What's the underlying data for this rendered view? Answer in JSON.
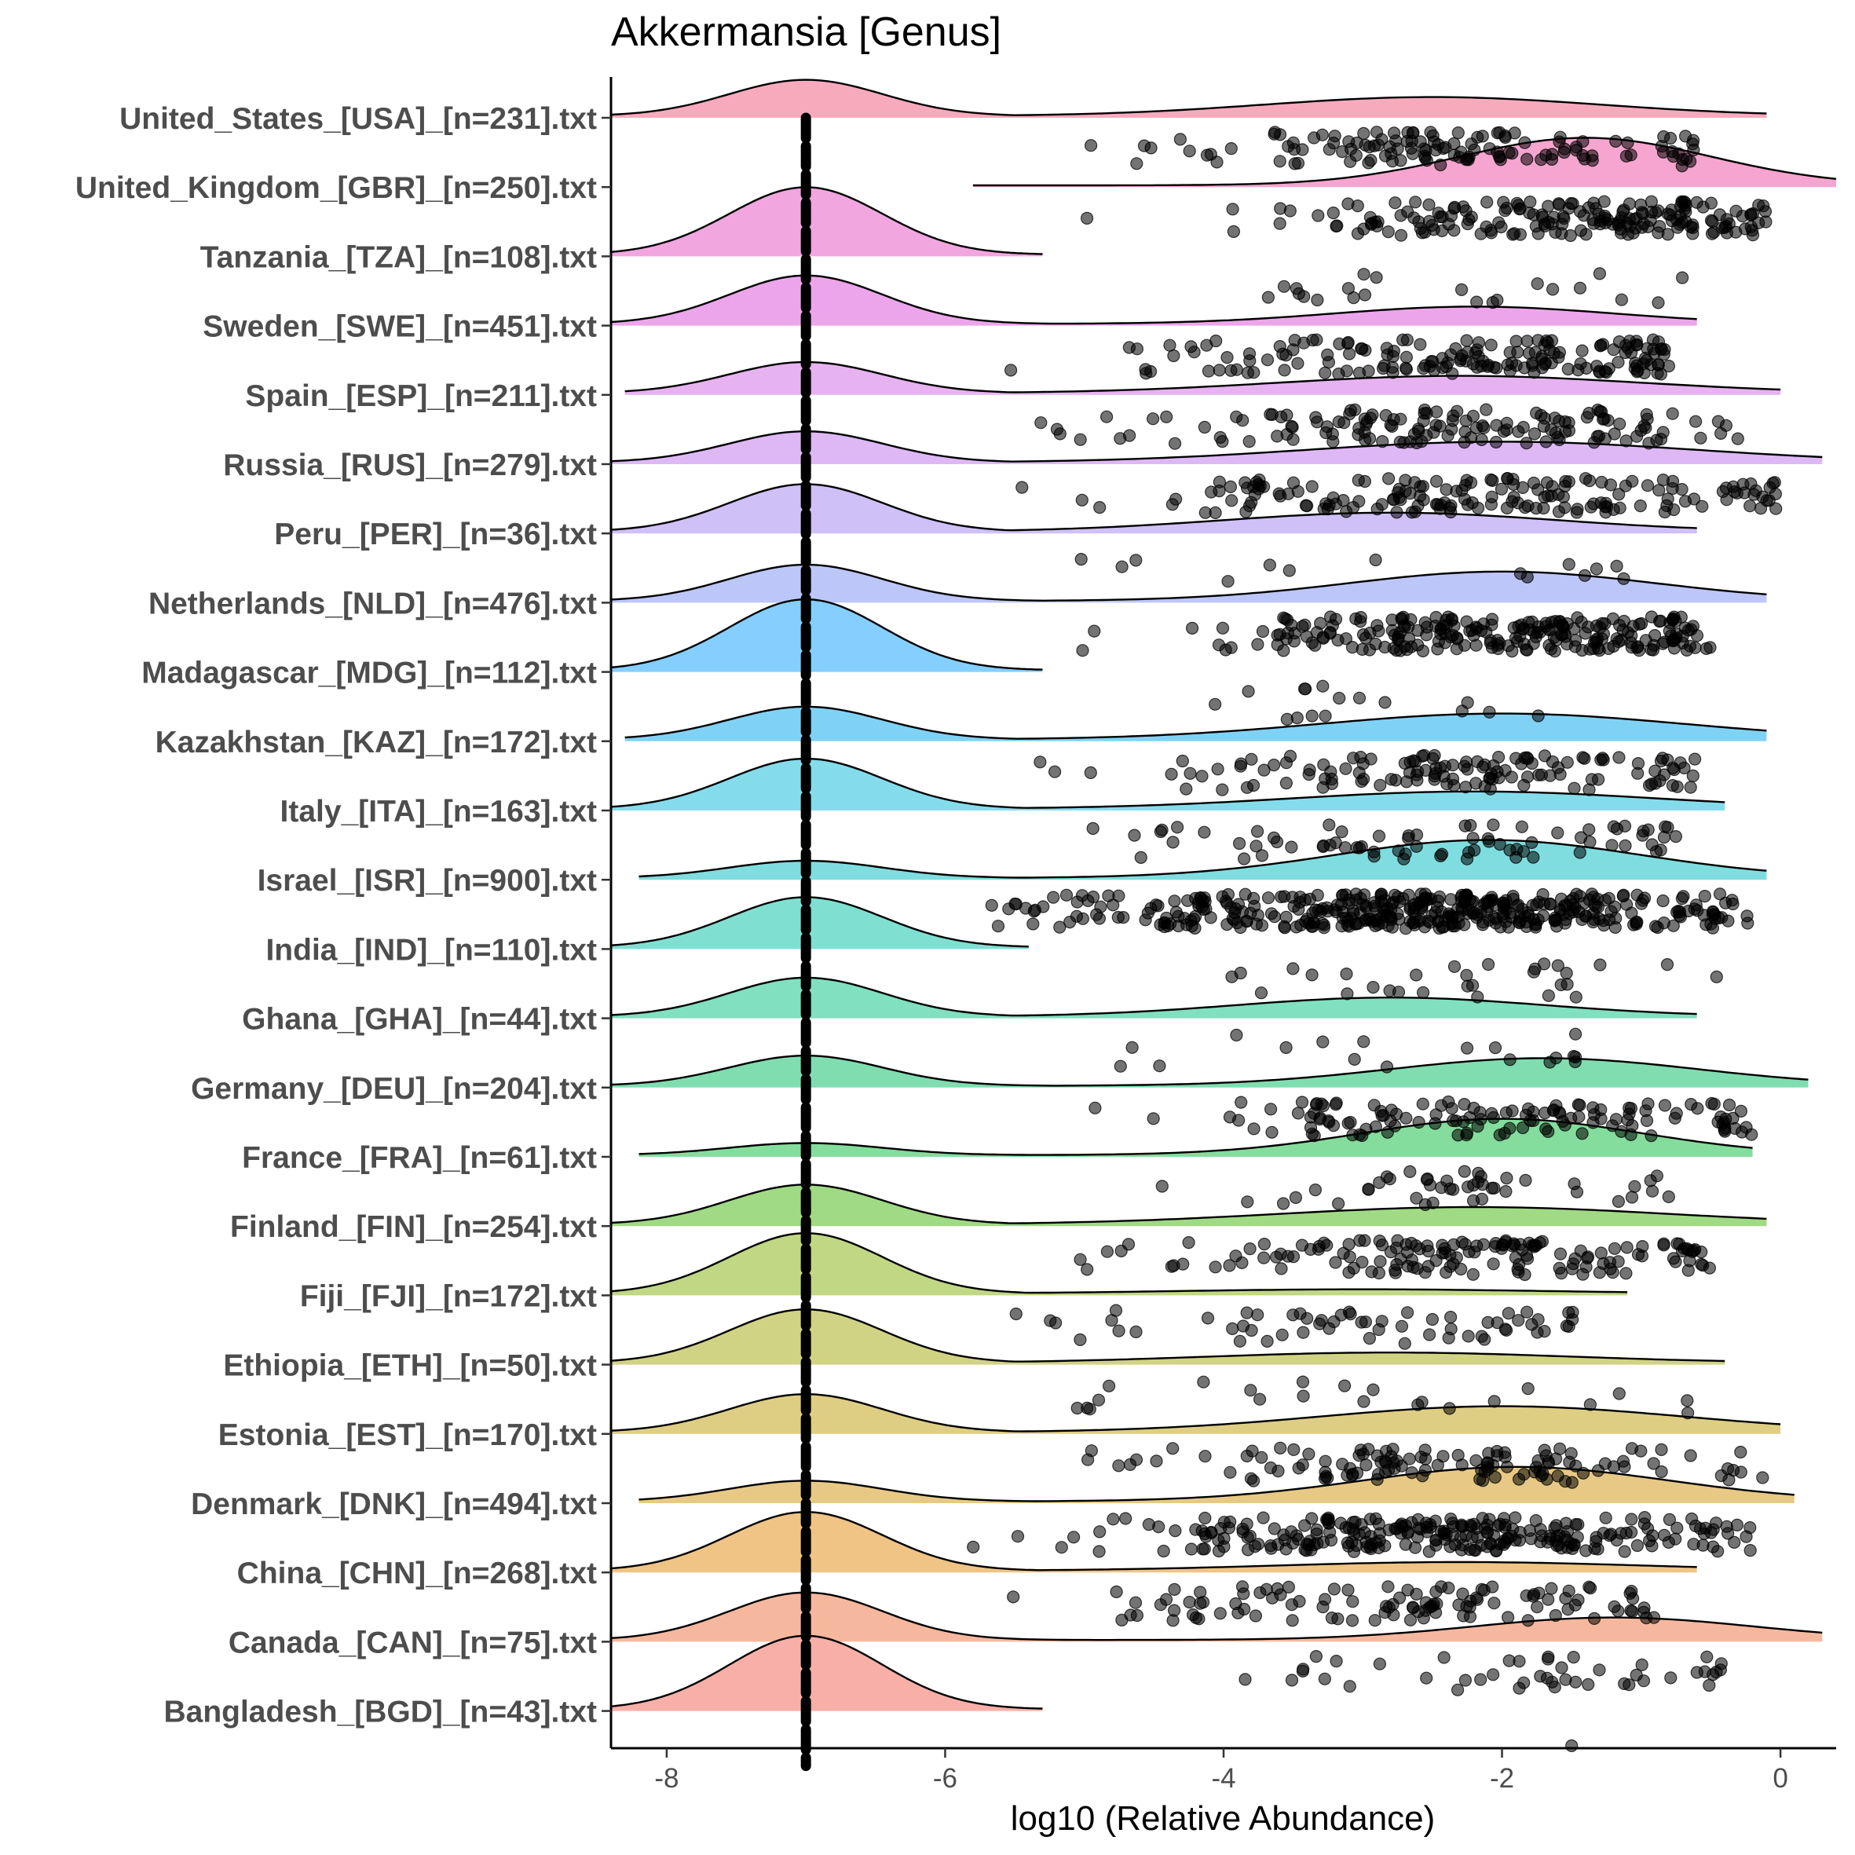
{
  "chart_data": {
    "type": "raincloud",
    "title": "Akkermansia [Genus]",
    "xlabel": "log10 (Relative Abundance)",
    "ylabel": "",
    "xlim": [
      -8.4,
      0.4
    ],
    "x_ticks": [
      -8,
      -6,
      -4,
      -2,
      0
    ],
    "reference_line_x": -7,
    "grid": false,
    "legend": "none",
    "groups": [
      {
        "label": "United_States_[USA]_[n=231].txt",
        "color": "#F8AABD",
        "zero_peak": 0.42,
        "zero_width": 0.55,
        "x_min": -8.4,
        "x_max": -0.1,
        "mode_center": -2.5,
        "mode_spread": 1.2,
        "mode_height": 0.22,
        "points": {
          "count": 130,
          "center": -2.3,
          "spread": 1.1,
          "min": -5.5,
          "max": -0.6
        }
      },
      {
        "label": "United_Kingdom_[GBR]_[n=250].txt",
        "color": "#F5A5CF",
        "zero_peak": 0.0,
        "zero_width": 0.55,
        "x_min": -5.8,
        "x_max": 0.4,
        "mode_center": -1.4,
        "mode_spread": 0.9,
        "mode_height": 0.55,
        "points": {
          "count": 190,
          "center": -1.5,
          "spread": 1.0,
          "min": -6.0,
          "max": -0.1
        }
      },
      {
        "label": "Tanzania_[TZA]_[n=108].txt",
        "color": "#F1A6E0",
        "zero_peak": 0.78,
        "zero_width": 0.55,
        "x_min": -8.4,
        "x_max": -5.3,
        "mode_center": -2.5,
        "mode_spread": 1.5,
        "mode_height": 0.03,
        "points": {
          "count": 22,
          "center": -2.6,
          "spread": 1.0,
          "min": -4.6,
          "max": -0.6
        }
      },
      {
        "label": "Sweden_[SWE]_[n=451].txt",
        "color": "#ECA5EA",
        "zero_peak": 0.56,
        "zero_width": 0.55,
        "x_min": -8.4,
        "x_max": -0.6,
        "mode_center": -2.2,
        "mode_spread": 1.0,
        "mode_height": 0.2,
        "points": {
          "count": 170,
          "center": -2.2,
          "spread": 1.1,
          "min": -5.6,
          "max": -0.8
        }
      },
      {
        "label": "Spain_[ESP]_[n=211].txt",
        "color": "#E6B2F0",
        "zero_peak": 0.36,
        "zero_width": 0.55,
        "x_min": -8.3,
        "x_max": 0.0,
        "mode_center": -2.3,
        "mode_spread": 1.3,
        "mode_height": 0.2,
        "points": {
          "count": 140,
          "center": -2.4,
          "spread": 1.1,
          "min": -6.1,
          "max": -0.3
        }
      },
      {
        "label": "Russia_[RUS]_[n=279].txt",
        "color": "#DDB8F5",
        "zero_peak": 0.36,
        "zero_width": 0.55,
        "x_min": -8.4,
        "x_max": 0.3,
        "mode_center": -2.0,
        "mode_spread": 1.4,
        "mode_height": 0.24,
        "points": {
          "count": 170,
          "center": -2.3,
          "spread": 1.3,
          "min": -5.6,
          "max": 0.0
        }
      },
      {
        "label": "Peru_[PER]_[n=36].txt",
        "color": "#CFC0F7",
        "zero_peak": 0.55,
        "zero_width": 0.55,
        "x_min": -8.4,
        "x_max": -0.6,
        "mode_center": -2.8,
        "mode_spread": 1.2,
        "mode_height": 0.22,
        "points": {
          "count": 14,
          "center": -2.8,
          "spread": 1.3,
          "min": -5.5,
          "max": -1.1
        }
      },
      {
        "label": "Netherlands_[NLD]_[n=476].txt",
        "color": "#BDC6F8",
        "zero_peak": 0.42,
        "zero_width": 0.55,
        "x_min": -8.4,
        "x_max": -0.1,
        "mode_center": -2.0,
        "mode_spread": 1.1,
        "mode_height": 0.34,
        "points": {
          "count": 240,
          "center": -2.1,
          "spread": 1.0,
          "min": -5.2,
          "max": -0.5
        }
      },
      {
        "label": "Madagascar_[MDG]_[n=112].txt",
        "color": "#84CFFF",
        "zero_peak": 0.82,
        "zero_width": 0.55,
        "x_min": -8.4,
        "x_max": -5.3,
        "mode_center": -3.0,
        "mode_spread": 1.0,
        "mode_height": 0.03,
        "points": {
          "count": 16,
          "center": -3.0,
          "spread": 0.9,
          "min": -4.2,
          "max": -1.1
        }
      },
      {
        "label": "Kazakhstan_[KAZ]_[n=172].txt",
        "color": "#80D2F5",
        "zero_peak": 0.38,
        "zero_width": 0.55,
        "x_min": -8.3,
        "x_max": -0.1,
        "mode_center": -2.0,
        "mode_spread": 1.3,
        "mode_height": 0.3,
        "points": {
          "count": 130,
          "center": -2.3,
          "spread": 1.2,
          "min": -5.6,
          "max": -0.6
        }
      },
      {
        "label": "Italy_[ITA]_[n=163].txt",
        "color": "#84DCEB",
        "zero_peak": 0.58,
        "zero_width": 0.55,
        "x_min": -8.4,
        "x_max": -0.4,
        "mode_center": -2.2,
        "mode_spread": 1.3,
        "mode_height": 0.2,
        "points": {
          "count": 75,
          "center": -2.4,
          "spread": 1.2,
          "min": -5.2,
          "max": -0.7
        }
      },
      {
        "label": "Israel_[ISR]_[n=900].txt",
        "color": "#7FDDDF",
        "zero_peak": 0.2,
        "zero_width": 0.55,
        "x_min": -8.2,
        "x_max": -0.1,
        "mode_center": -2.1,
        "mode_spread": 1.1,
        "mode_height": 0.44,
        "points": {
          "count": 420,
          "center": -2.5,
          "spread": 1.2,
          "min": -5.7,
          "max": -0.2
        }
      },
      {
        "label": "India_[IND]_[n=110].txt",
        "color": "#7FE0D2",
        "zero_peak": 0.58,
        "zero_width": 0.55,
        "x_min": -8.4,
        "x_max": -5.4,
        "mode_center": -2.4,
        "mode_spread": 1.2,
        "mode_height": 0.16,
        "points": {
          "count": 30,
          "center": -2.4,
          "spread": 1.0,
          "min": -4.0,
          "max": -0.1
        }
      },
      {
        "label": "Ghana_[GHA]_[n=44].txt",
        "color": "#80E0C0",
        "zero_peak": 0.45,
        "zero_width": 0.55,
        "x_min": -8.4,
        "x_max": -0.6,
        "mode_center": -2.8,
        "mode_spread": 1.1,
        "mode_height": 0.22,
        "points": {
          "count": 18,
          "center": -2.7,
          "spread": 1.3,
          "min": -5.0,
          "max": -1.4
        }
      },
      {
        "label": "Germany_[DEU]_[n=204].txt",
        "color": "#80DDB0",
        "zero_peak": 0.35,
        "zero_width": 0.55,
        "x_min": -8.4,
        "x_max": 0.2,
        "mode_center": -1.7,
        "mode_spread": 1.1,
        "mode_height": 0.32,
        "points": {
          "count": 130,
          "center": -2.0,
          "spread": 1.1,
          "min": -5.2,
          "max": -0.2
        }
      },
      {
        "label": "France_[FRA]_[n=61].txt",
        "color": "#84DD9C",
        "zero_peak": 0.14,
        "zero_width": 0.55,
        "x_min": -8.2,
        "x_max": -0.2,
        "mode_center": -2.0,
        "mode_spread": 1.0,
        "mode_height": 0.42,
        "points": {
          "count": 45,
          "center": -2.3,
          "spread": 1.0,
          "min": -4.9,
          "max": -0.8
        }
      },
      {
        "label": "Finland_[FIN]_[n=254].txt",
        "color": "#A0DA84",
        "zero_peak": 0.46,
        "zero_width": 0.55,
        "x_min": -8.4,
        "x_max": -0.1,
        "mode_center": -2.2,
        "mode_spread": 1.4,
        "mode_height": 0.2,
        "points": {
          "count": 150,
          "center": -2.4,
          "spread": 1.1,
          "min": -5.2,
          "max": -0.5
        }
      },
      {
        "label": "Fiji_[FJI]_[n=172].txt",
        "color": "#C0D784",
        "zero_peak": 0.7,
        "zero_width": 0.55,
        "x_min": -8.4,
        "x_max": -1.1,
        "mode_center": -3.0,
        "mode_spread": 1.3,
        "mode_height": 0.05,
        "points": {
          "count": 60,
          "center": -3.0,
          "spread": 1.2,
          "min": -5.5,
          "max": -1.4
        }
      },
      {
        "label": "Ethiopia_[ETH]_[n=50].txt",
        "color": "#D1D384",
        "zero_peak": 0.62,
        "zero_width": 0.55,
        "x_min": -8.4,
        "x_max": -0.4,
        "mode_center": -2.8,
        "mode_spread": 1.3,
        "mode_height": 0.12,
        "points": {
          "count": 22,
          "center": -2.6,
          "spread": 1.4,
          "min": -5.1,
          "max": -0.6
        }
      },
      {
        "label": "Estonia_[EST]_[n=170].txt",
        "color": "#DDCE84",
        "zero_peak": 0.44,
        "zero_width": 0.55,
        "x_min": -8.4,
        "x_max": 0.0,
        "mode_center": -2.0,
        "mode_spread": 1.3,
        "mode_height": 0.3,
        "points": {
          "count": 120,
          "center": -2.4,
          "spread": 1.2,
          "min": -5.2,
          "max": -0.1
        }
      },
      {
        "label": "Denmark_[DNK]_[n=494].txt",
        "color": "#E7C985",
        "zero_peak": 0.24,
        "zero_width": 0.55,
        "x_min": -8.2,
        "x_max": 0.1,
        "mode_center": -1.9,
        "mode_spread": 1.1,
        "mode_height": 0.4,
        "points": {
          "count": 260,
          "center": -2.3,
          "spread": 1.2,
          "min": -5.8,
          "max": -0.2
        }
      },
      {
        "label": "China_[CHN]_[n=268].txt",
        "color": "#EFC485",
        "zero_peak": 0.68,
        "zero_width": 0.55,
        "x_min": -8.4,
        "x_max": -0.6,
        "mode_center": -2.3,
        "mode_spread": 1.3,
        "mode_height": 0.1,
        "points": {
          "count": 110,
          "center": -2.6,
          "spread": 1.2,
          "min": -5.8,
          "max": -0.9
        }
      },
      {
        "label": "Canada_[CAN]_[n=75].txt",
        "color": "#F5B89E",
        "zero_peak": 0.55,
        "zero_width": 0.55,
        "x_min": -8.4,
        "x_max": 0.3,
        "mode_center": -1.2,
        "mode_spread": 1.0,
        "mode_height": 0.26,
        "points": {
          "count": 45,
          "center": -2.0,
          "spread": 1.2,
          "min": -5.8,
          "max": -0.3
        }
      },
      {
        "label": "Bangladesh_[BGD]_[n=43].txt",
        "color": "#F8AFA8",
        "zero_peak": 0.85,
        "zero_width": 0.55,
        "x_min": -8.4,
        "x_max": -5.3,
        "mode_center": -1.5,
        "mode_spread": 0.5,
        "mode_height": 0.0,
        "points": {
          "count": 1,
          "center": -1.5,
          "spread": 0.0,
          "min": -1.5,
          "max": -1.5
        }
      }
    ]
  }
}
